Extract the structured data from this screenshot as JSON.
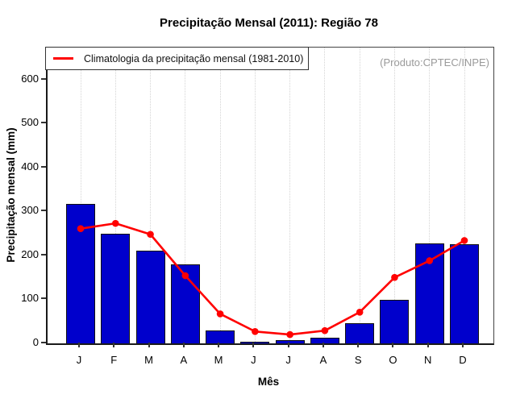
{
  "title": "Precipitação Mensal (2011): Região 78",
  "legend": {
    "label": "Climatologia da precipitação mensal (1981-2010)"
  },
  "watermark": "(Produto:CPTEC/INPE)",
  "axes": {
    "y_label": "Precipitação mensal (mm)",
    "x_label": "Mês",
    "y_ticks": [
      0,
      100,
      200,
      300,
      400,
      500,
      600
    ]
  },
  "colors": {
    "bar_fill": "#0000CC",
    "bar_border": "#111111",
    "line": "#FF0000",
    "grid": "#d4d4d4",
    "watermark_text": "#9a9a9a"
  },
  "chart_data": {
    "type": "bar",
    "title": "Precipitação Mensal (2011): Região 78",
    "xlabel": "Mês",
    "ylabel": "Precipitação mensal (mm)",
    "categories": [
      "J",
      "F",
      "M",
      "A",
      "M",
      "J",
      "J",
      "A",
      "S",
      "O",
      "N",
      "D"
    ],
    "series": [
      {
        "name": "Precipitação Mensal (2011)",
        "type": "bar",
        "color": "#0000CC",
        "values": [
          317,
          249,
          211,
          180,
          29,
          3,
          8,
          12,
          46,
          99,
          227,
          226
        ]
      },
      {
        "name": "Climatologia da precipitação mensal (1981-2010)",
        "type": "line",
        "color": "#FF0000",
        "values": [
          261,
          273,
          248,
          154,
          67,
          27,
          20,
          29,
          71,
          150,
          188,
          234
        ]
      }
    ],
    "ylim": [
      0,
      673
    ],
    "y_ticks": [
      0,
      100,
      200,
      300,
      400,
      500,
      600
    ],
    "grid": "vertical-dotted",
    "legend_position": "top-left",
    "legend_entries": [
      "Climatologia da precipitação mensal (1981-2010)"
    ]
  }
}
